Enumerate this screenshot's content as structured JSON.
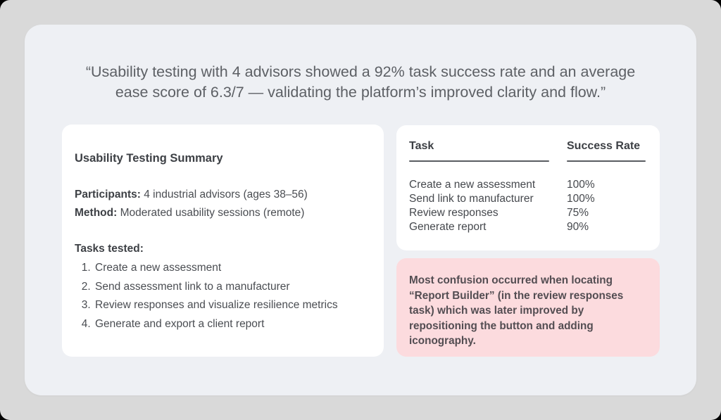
{
  "headline": {
    "line1": "“Usability testing with 4 advisors showed a 92% task success rate and an average",
    "line2": "ease score of 6.3/7 — validating the platform’s improved clarity and flow.”"
  },
  "summary_card": {
    "title": "Usability Testing Summary",
    "fields": [
      {
        "label": "Participants:",
        "value": "4 industrial advisors (ages 38–56)"
      },
      {
        "label": "Method:",
        "value": "Moderated usability sessions (remote)"
      }
    ],
    "tasks_heading": "Tasks tested:",
    "tasks": [
      "Create a new assessment",
      "Send assessment link to a manufacturer",
      "Review responses and visualize resilience metrics",
      "Generate and export a client report"
    ]
  },
  "results_table": {
    "columns": [
      "Task",
      "Success Rate"
    ],
    "rows": [
      {
        "task": "Create a new assessment",
        "rate": "100%"
      },
      {
        "task": "Send link to manufacturer",
        "rate": "100%"
      },
      {
        "task": "Review responses",
        "rate": "75%"
      },
      {
        "task": "Generate report",
        "rate": "90%"
      }
    ]
  },
  "callout": {
    "text": "Most confusion occurred when locating “Report Builder” (in the review responses task) which was later improved by repositioning the button and adding iconography."
  },
  "colors": {
    "outer_background": "#d9d9d9",
    "panel_background": "#eef0f4",
    "card_background": "#ffffff",
    "callout_background": "#fcdbde",
    "heading_text": "#3d4045",
    "body_text": "#4a4d52",
    "headline_text": "#5d6065"
  }
}
